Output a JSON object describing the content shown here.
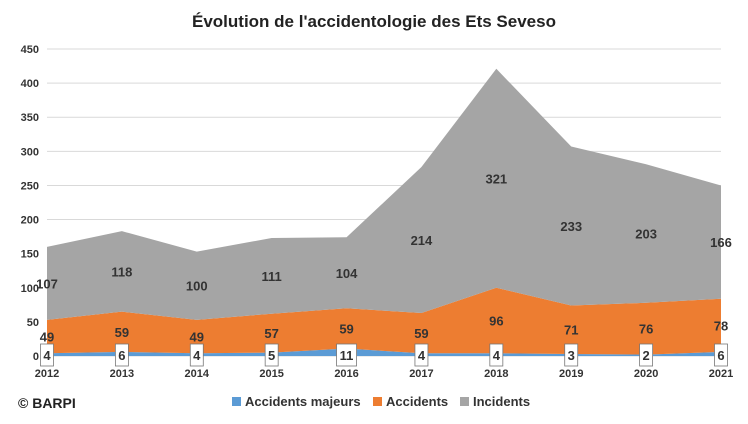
{
  "chart_data": {
    "type": "area",
    "stacked": true,
    "title": "Évolution de l'accidentologie des Ets Seveso",
    "categories": [
      "2012",
      "2013",
      "2014",
      "2015",
      "2016",
      "2017",
      "2018",
      "2019",
      "2020",
      "2021"
    ],
    "ylim": [
      0,
      450
    ],
    "yticks": [
      "0",
      "50",
      "100",
      "150",
      "200",
      "250",
      "300",
      "350",
      "400",
      "450"
    ],
    "grid": true,
    "legend_position": "bottom",
    "series": [
      {
        "name": "Accidents majeurs",
        "color": "#5b9bd5",
        "values": [
          4,
          6,
          4,
          5,
          11,
          4,
          4,
          3,
          2,
          6
        ],
        "labels": [
          "4",
          "6",
          "4",
          "5",
          "11",
          "4",
          "4",
          "3",
          "2",
          "6"
        ]
      },
      {
        "name": "Accidents",
        "color": "#ed7d31",
        "values": [
          49,
          59,
          49,
          57,
          59,
          59,
          96,
          71,
          76,
          78
        ],
        "labels": [
          "49",
          "59",
          "49",
          "57",
          "59",
          "59",
          "96",
          "71",
          "76",
          "78"
        ]
      },
      {
        "name": "Incidents",
        "color": "#a5a5a5",
        "values": [
          107,
          118,
          100,
          111,
          104,
          214,
          321,
          233,
          203,
          166
        ],
        "labels": [
          "107",
          "118",
          "100",
          "111",
          "104",
          "214",
          "321",
          "233",
          "203",
          "166"
        ]
      }
    ]
  },
  "credit": "© BARPI"
}
